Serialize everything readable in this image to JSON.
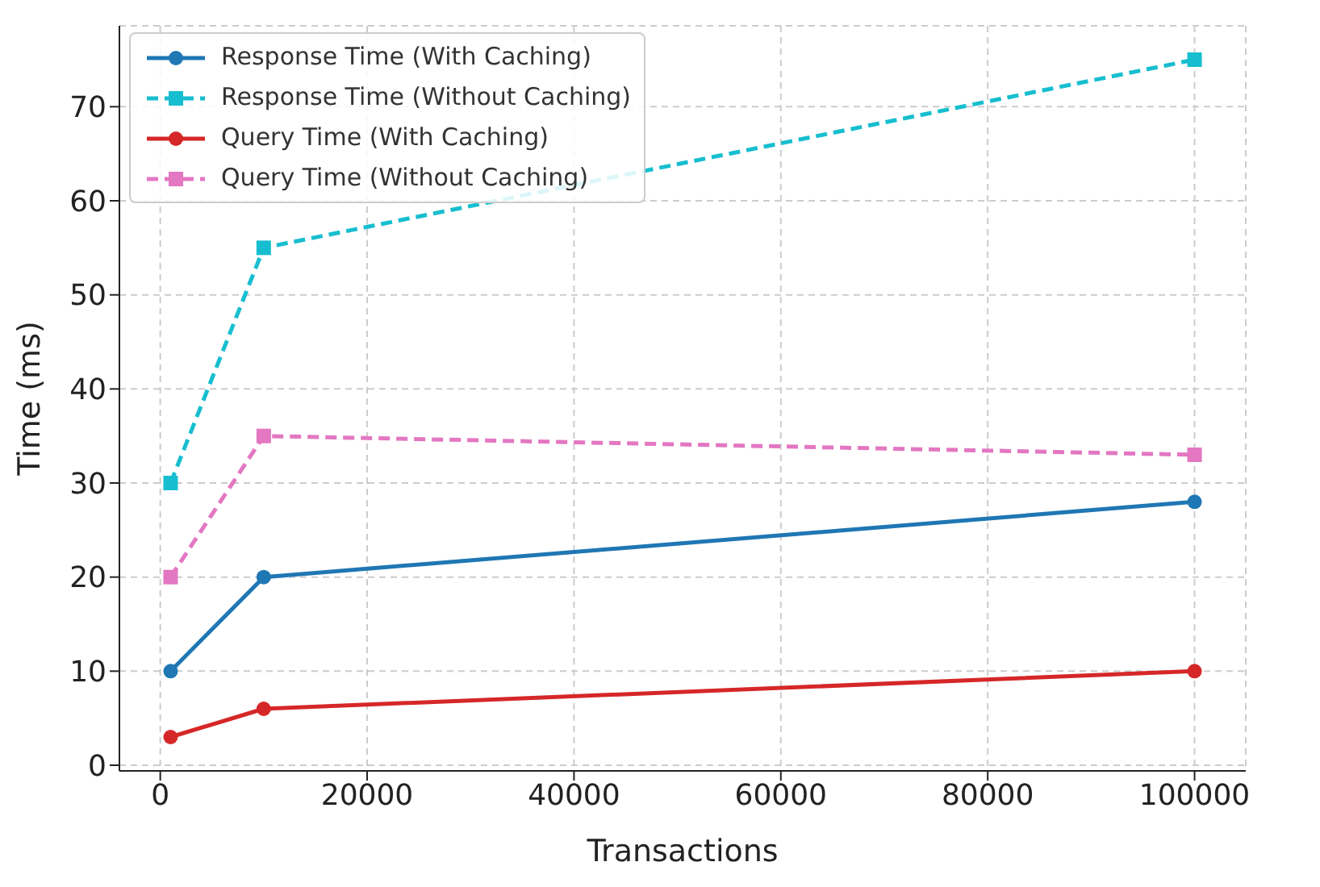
{
  "chart_data": {
    "type": "line",
    "xlabel": "Transactions",
    "ylabel": "Time (ms)",
    "x": [
      1000,
      10000,
      100000
    ],
    "series": [
      {
        "name": "Response Time (With Caching)",
        "color": "#1f77b4",
        "values": [
          10,
          20,
          28
        ],
        "marker": "circle",
        "line_style": "solid"
      },
      {
        "name": "Response Time (Without Caching)",
        "color": "#17becf",
        "values": [
          30,
          55,
          75
        ],
        "marker": "square",
        "line_style": "dashed"
      },
      {
        "name": "Query Time (With Caching)",
        "color": "#d62728",
        "values": [
          3,
          6,
          10
        ],
        "marker": "circle",
        "line_style": "solid"
      },
      {
        "name": "Query Time (Without Caching)",
        "color": "#e377c2",
        "values": [
          20,
          35,
          33
        ],
        "marker": "square",
        "line_style": "dashed"
      }
    ],
    "xlim": [
      -3950,
      104950
    ],
    "xticks": [
      0,
      20000,
      40000,
      60000,
      80000,
      100000
    ],
    "ylim": [
      -0.6,
      78.6
    ],
    "yticks": [
      0,
      10,
      20,
      30,
      40,
      50,
      60,
      70
    ],
    "grid": true,
    "legend": "top left"
  }
}
